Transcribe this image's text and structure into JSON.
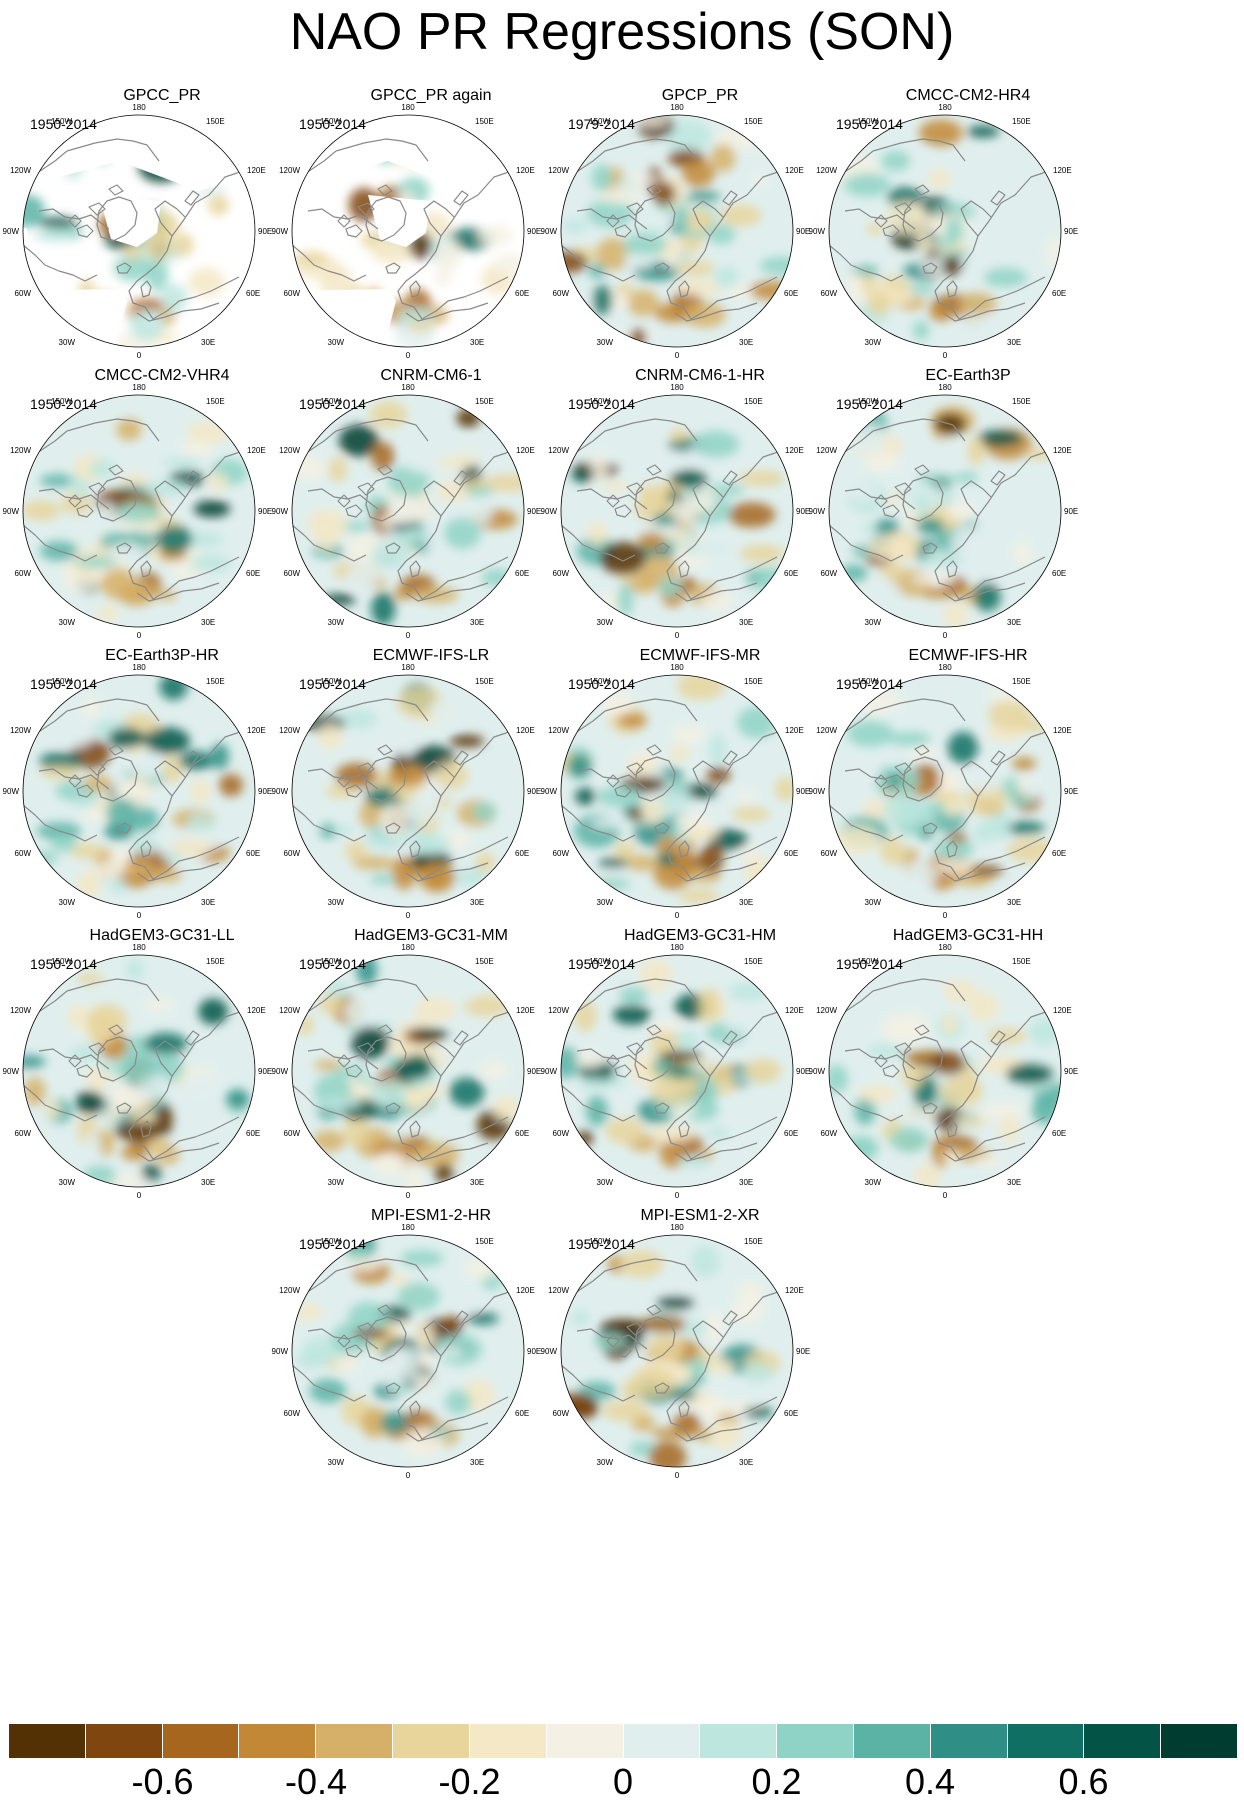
{
  "title": "NAO PR Regressions (SON)",
  "lon_labels": {
    "n": "180",
    "nne": "150E",
    "ene": "120E",
    "e": "90E",
    "ese": "60E",
    "sse": "30E",
    "s": "0",
    "ssw": "30W",
    "wsw": "60W",
    "w": "90W",
    "wnw": "120W",
    "nnw": "150W"
  },
  "panels": [
    {
      "title": "GPCC_PR",
      "period": "1950-2014",
      "data_coverage": "land-only",
      "anomaly_seed": 3
    },
    {
      "title": "GPCC_PR again",
      "period": "1950-2014",
      "data_coverage": "land-only",
      "anomaly_seed": 7
    },
    {
      "title": "GPCP_PR",
      "period": "1979-2014",
      "data_coverage": "global",
      "anomaly_seed": 11
    },
    {
      "title": "CMCC-CM2-HR4",
      "period": "1950-2014",
      "data_coverage": "global",
      "anomaly_seed": 17
    },
    {
      "title": "CMCC-CM2-VHR4",
      "period": "1950-2014",
      "data_coverage": "global",
      "anomaly_seed": 23
    },
    {
      "title": "CNRM-CM6-1",
      "period": "1950-2014",
      "data_coverage": "global",
      "anomaly_seed": 29
    },
    {
      "title": "CNRM-CM6-1-HR",
      "period": "1950-2014",
      "data_coverage": "global",
      "anomaly_seed": 31
    },
    {
      "title": "EC-Earth3P",
      "period": "1950-2014",
      "data_coverage": "global",
      "anomaly_seed": 37
    },
    {
      "title": "EC-Earth3P-HR",
      "period": "1950-2014",
      "data_coverage": "global",
      "anomaly_seed": 41
    },
    {
      "title": "ECMWF-IFS-LR",
      "period": "1950-2014",
      "data_coverage": "global",
      "anomaly_seed": 43
    },
    {
      "title": "ECMWF-IFS-MR",
      "period": "1950-2014",
      "data_coverage": "global",
      "anomaly_seed": 47
    },
    {
      "title": "ECMWF-IFS-HR",
      "period": "1950-2014",
      "data_coverage": "global",
      "anomaly_seed": 53
    },
    {
      "title": "HadGEM3-GC31-LL",
      "period": "1950-2014",
      "data_coverage": "global",
      "anomaly_seed": 59
    },
    {
      "title": "HadGEM3-GC31-MM",
      "period": "1950-2014",
      "data_coverage": "global",
      "anomaly_seed": 61
    },
    {
      "title": "HadGEM3-GC31-HM",
      "period": "1950-2014",
      "data_coverage": "global",
      "anomaly_seed": 67
    },
    {
      "title": "HadGEM3-GC31-HH",
      "period": "1950-2014",
      "data_coverage": "global",
      "anomaly_seed": 71
    },
    {
      "title": "MPI-ESM1-2-HR",
      "period": "1950-2014",
      "data_coverage": "global",
      "anomaly_seed": 73
    },
    {
      "title": "MPI-ESM1-2-XR",
      "period": "1950-2014",
      "data_coverage": "global",
      "anomaly_seed": 79
    }
  ],
  "colorbar": {
    "colors": [
      "#543005",
      "#7f4610",
      "#a6661d",
      "#c28836",
      "#d6b069",
      "#e8d59c",
      "#f4e8c6",
      "#f4f1e4",
      "#e0efee",
      "#bde6df",
      "#8fd3c6",
      "#5bb3a6",
      "#2f8f86",
      "#0f6f62",
      "#045347",
      "#003c30"
    ],
    "labels": [
      "-0.6",
      "-0.4",
      "-0.2",
      "0",
      "0.2",
      "0.4",
      "0.6"
    ],
    "label_boundaries": [
      1,
      3,
      5,
      7,
      9,
      11,
      13
    ]
  },
  "colors": {
    "land_outline": "#8a8a8a",
    "masked_ocean": "#ffffff",
    "map_edge": "#000000"
  }
}
